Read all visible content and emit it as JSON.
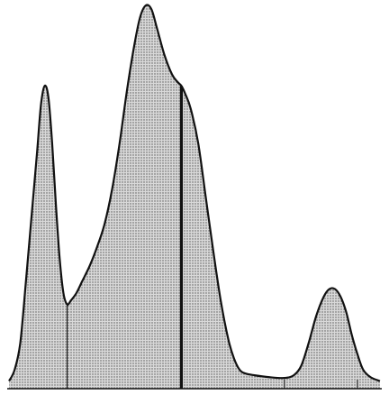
{
  "chart_data": {
    "type": "area",
    "title": "",
    "xlabel": "",
    "ylabel": "",
    "axes_labeled": false,
    "grid": false,
    "fill_pattern": "dotted stipple",
    "colors": {
      "background": "#ffffff",
      "outline": "#111111",
      "fill": "#d9d9d9",
      "dots": "#555555"
    },
    "xlim": [
      0,
      100
    ],
    "ylim": [
      0,
      100
    ],
    "series": [
      {
        "points": [
          [
            0.5,
            2
          ],
          [
            2,
            5
          ],
          [
            3.5,
            12
          ],
          [
            5,
            28
          ],
          [
            6.5,
            45
          ],
          [
            8,
            62
          ],
          [
            9,
            74
          ],
          [
            10,
            79
          ],
          [
            11,
            76
          ],
          [
            12,
            64
          ],
          [
            13,
            48
          ],
          [
            14,
            34
          ],
          [
            15,
            25
          ],
          [
            16,
            22
          ],
          [
            17,
            23
          ],
          [
            18.5,
            25
          ],
          [
            20,
            28
          ],
          [
            22,
            32
          ],
          [
            24,
            37
          ],
          [
            26,
            43
          ],
          [
            28,
            52
          ],
          [
            30,
            64
          ],
          [
            32,
            78
          ],
          [
            34,
            90
          ],
          [
            35.5,
            97
          ],
          [
            37,
            100
          ],
          [
            38.5,
            99
          ],
          [
            40,
            94
          ],
          [
            42,
            87
          ],
          [
            44,
            82
          ],
          [
            45.5,
            80
          ],
          [
            46.5,
            79
          ],
          [
            47.5,
            77
          ],
          [
            49,
            73
          ],
          [
            51,
            64
          ],
          [
            53,
            50
          ],
          [
            55,
            36
          ],
          [
            57,
            23
          ],
          [
            59,
            13
          ],
          [
            60.5,
            8
          ],
          [
            62,
            5
          ],
          [
            63.5,
            4
          ],
          [
            66,
            3.5
          ],
          [
            70,
            3
          ],
          [
            74,
            2.8
          ],
          [
            76.5,
            3.5
          ],
          [
            78.5,
            6
          ],
          [
            80.5,
            12
          ],
          [
            82.5,
            19
          ],
          [
            84.5,
            24
          ],
          [
            86,
            26
          ],
          [
            87.5,
            26
          ],
          [
            89,
            24
          ],
          [
            90.5,
            20
          ],
          [
            92,
            14
          ],
          [
            93.5,
            9
          ],
          [
            95,
            5
          ],
          [
            97,
            3
          ],
          [
            99.5,
            2
          ]
        ]
      }
    ],
    "markers": [
      {
        "x": 16,
        "weight": "thin"
      },
      {
        "x": 46.5,
        "weight": "thick"
      },
      {
        "x": 74,
        "weight": "tick"
      },
      {
        "x": 93.5,
        "weight": "tick"
      }
    ]
  }
}
